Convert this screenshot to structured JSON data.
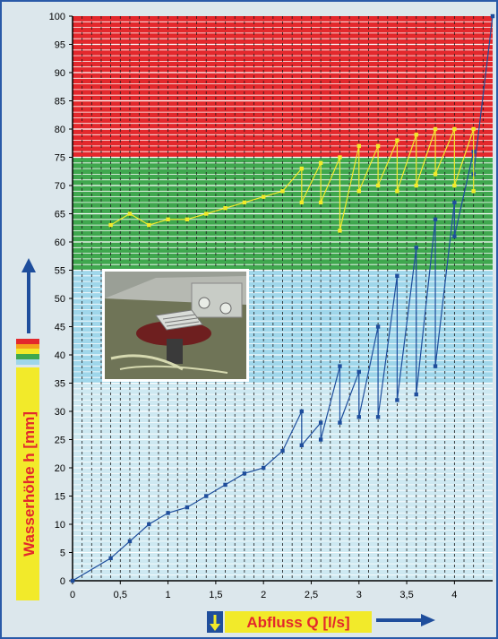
{
  "chart_data": {
    "type": "line",
    "xlabel": "Abfluss Q [l/s]",
    "ylabel": "Wasserhöhe h [mm]",
    "xlim": [
      0,
      4.4
    ],
    "ylim": [
      0,
      100
    ],
    "x_ticks": [
      "0",
      "0,5",
      "1",
      "1,5",
      "2",
      "2,5",
      "3",
      "3,5",
      "4"
    ],
    "y_ticks": [
      "0",
      "5",
      "10",
      "15",
      "20",
      "25",
      "30",
      "35",
      "40",
      "45",
      "50",
      "55",
      "60",
      "65",
      "70",
      "75",
      "80",
      "85",
      "90",
      "95",
      "100"
    ],
    "zones": [
      {
        "from": 0,
        "to": 35,
        "color": "#cde8f1"
      },
      {
        "from": 35,
        "to": 55,
        "color": "#9fd6ea"
      },
      {
        "from": 55,
        "to": 75,
        "color": "#3fa74e"
      },
      {
        "from": 75,
        "to": 100,
        "color": "#e3282c"
      }
    ],
    "series": [
      {
        "color": "#1f4e9c",
        "points": [
          [
            0,
            0
          ],
          [
            0.4,
            4
          ],
          [
            0.6,
            7
          ],
          [
            0.8,
            10
          ],
          [
            1.0,
            12
          ],
          [
            1.2,
            13
          ],
          [
            1.4,
            15
          ],
          [
            1.6,
            17
          ],
          [
            1.8,
            19
          ],
          [
            2.0,
            20
          ],
          [
            2.2,
            23
          ],
          [
            2.4,
            30
          ],
          [
            2.4,
            24
          ],
          [
            2.6,
            28
          ],
          [
            2.6,
            25
          ],
          [
            2.8,
            38
          ],
          [
            2.8,
            28
          ],
          [
            3.0,
            37
          ],
          [
            3.0,
            29
          ],
          [
            3.2,
            45
          ],
          [
            3.2,
            29
          ],
          [
            3.4,
            54
          ],
          [
            3.4,
            32
          ],
          [
            3.6,
            59
          ],
          [
            3.6,
            33
          ],
          [
            3.8,
            64
          ],
          [
            3.8,
            38
          ],
          [
            4.0,
            67
          ],
          [
            4.0,
            61
          ],
          [
            4.2,
            76
          ],
          [
            4.2,
            72
          ],
          [
            4.4,
            100
          ]
        ]
      },
      {
        "color": "#f2ea2a",
        "points": [
          [
            0.4,
            63
          ],
          [
            0.6,
            65
          ],
          [
            0.8,
            63
          ],
          [
            1.0,
            64
          ],
          [
            1.2,
            64
          ],
          [
            1.4,
            65
          ],
          [
            1.6,
            66
          ],
          [
            1.8,
            67
          ],
          [
            2.0,
            68
          ],
          [
            2.2,
            69
          ],
          [
            2.4,
            73
          ],
          [
            2.4,
            67
          ],
          [
            2.6,
            74
          ],
          [
            2.6,
            67
          ],
          [
            2.8,
            75
          ],
          [
            2.8,
            62
          ],
          [
            3.0,
            77
          ],
          [
            3.0,
            69
          ],
          [
            3.2,
            77
          ],
          [
            3.2,
            70
          ],
          [
            3.4,
            78
          ],
          [
            3.4,
            69
          ],
          [
            3.6,
            79
          ],
          [
            3.6,
            70
          ],
          [
            3.8,
            80
          ],
          [
            3.8,
            72
          ],
          [
            4.0,
            80
          ],
          [
            4.0,
            70
          ],
          [
            4.2,
            80
          ],
          [
            4.2,
            69
          ]
        ]
      }
    ]
  },
  "colors": {
    "axis_arrow": "#1f4e9c",
    "label_background": "#f2ea2a",
    "label_text": "#e3282c",
    "down_arrow": "#f2ea2a"
  },
  "icons": {
    "x_indicator": "down-arrow-icon",
    "x_direction": "right-arrow-icon",
    "y_direction": "up-arrow-icon",
    "zone_legend": "color-stripes-icon"
  }
}
